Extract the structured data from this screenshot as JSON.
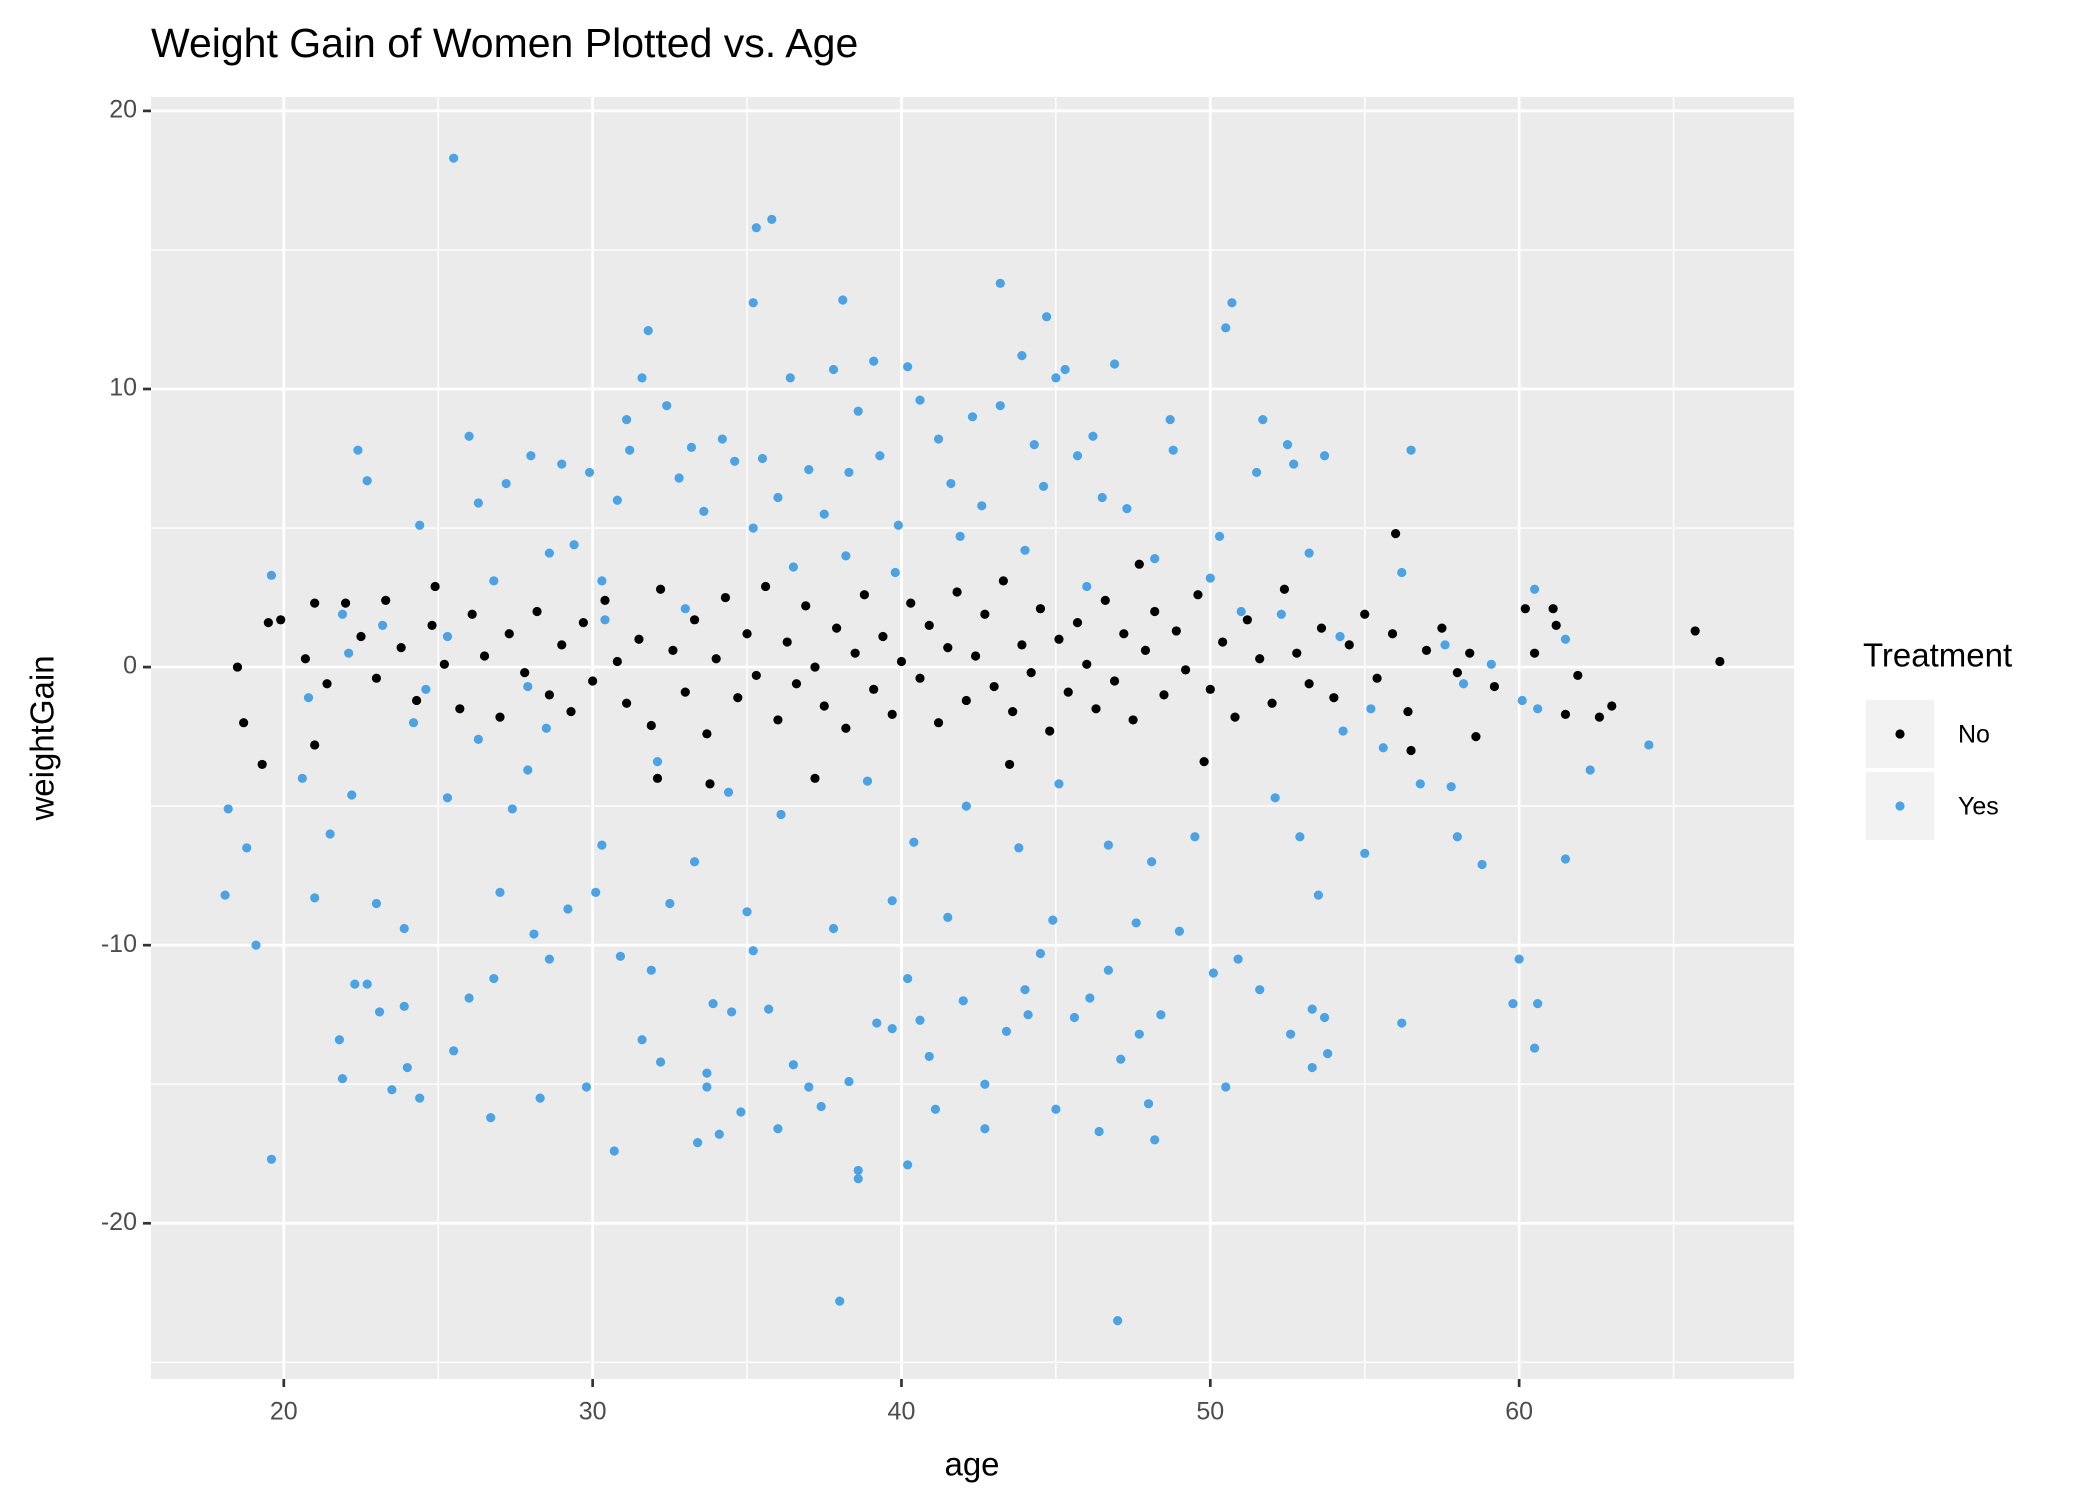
{
  "chart_data": {
    "type": "scatter",
    "title": "Weight Gain of Women Plotted vs. Age",
    "x_label": "age",
    "y_label": "weightGain",
    "legend_title": "Treatment",
    "legend_position": "right",
    "grid": true,
    "xlim": [
      15.7,
      68.9
    ],
    "xticks": [
      20,
      30,
      40,
      50,
      60
    ],
    "ylim": [
      -25.6,
      20.5
    ],
    "yticks": [
      -20,
      -10,
      0,
      10,
      20
    ],
    "series": [
      {
        "name": "No",
        "color": "#000000",
        "x": [
          56.0,
          65.7,
          66.5,
          63.0,
          62.6,
          61.9,
          61.2,
          61.1,
          60.2,
          58.6,
          56.5,
          19.3,
          18.7,
          18.5,
          19.5,
          19.9,
          21.0,
          21.0,
          22.0,
          23.3,
          24.9,
          33.8,
          37.2,
          43.5,
          47.7,
          32.1,
          49.8,
          20.7,
          21.4,
          22.5,
          23.0,
          23.8,
          24.3,
          24.8,
          25.2,
          25.7,
          26.1,
          26.5,
          27.0,
          27.3,
          27.8,
          28.2,
          28.6,
          29.0,
          29.3,
          29.7,
          30.0,
          30.4,
          30.8,
          31.1,
          31.5,
          31.9,
          32.2,
          32.6,
          33.0,
          33.3,
          33.7,
          34.0,
          34.3,
          34.7,
          35.0,
          35.3,
          35.6,
          36.0,
          36.3,
          36.6,
          36.9,
          37.2,
          37.5,
          37.9,
          38.2,
          38.5,
          38.8,
          39.1,
          39.4,
          39.7,
          40.0,
          40.3,
          40.6,
          40.9,
          41.2,
          41.5,
          41.8,
          42.1,
          42.4,
          42.7,
          43.0,
          43.3,
          43.6,
          43.9,
          44.2,
          44.5,
          44.8,
          45.1,
          45.4,
          45.7,
          46.0,
          46.3,
          46.6,
          46.9,
          47.2,
          47.5,
          47.9,
          48.2,
          48.5,
          48.9,
          49.2,
          49.6,
          50.0,
          50.4,
          50.8,
          51.2,
          51.6,
          52.0,
          52.4,
          52.8,
          53.2,
          53.6,
          54.0,
          54.5,
          55.0,
          55.4,
          55.9,
          56.4,
          57.0,
          57.5,
          58.0,
          58.4,
          59.2,
          60.5,
          61.5
        ],
        "values": [
          4.8,
          1.3,
          0.2,
          -1.4,
          -1.8,
          -0.3,
          1.5,
          2.1,
          2.1,
          -2.5,
          -3.0,
          -3.5,
          -2.0,
          0.0,
          1.6,
          1.7,
          -2.8,
          2.3,
          2.3,
          2.4,
          2.9,
          -4.2,
          -4.0,
          -3.5,
          3.7,
          -4.0,
          -3.4,
          0.3,
          -0.6,
          1.1,
          -0.4,
          0.7,
          -1.2,
          1.5,
          0.1,
          -1.5,
          1.9,
          0.4,
          -1.8,
          1.2,
          -0.2,
          2.0,
          -1.0,
          0.8,
          -1.6,
          1.6,
          -0.5,
          2.4,
          0.2,
          -1.3,
          1.0,
          -2.1,
          2.8,
          0.6,
          -0.9,
          1.7,
          -2.4,
          0.3,
          2.5,
          -1.1,
          1.2,
          -0.3,
          2.9,
          -1.9,
          0.9,
          -0.6,
          2.2,
          0.0,
          -1.4,
          1.4,
          -2.2,
          0.5,
          2.6,
          -0.8,
          1.1,
          -1.7,
          0.2,
          2.3,
          -0.4,
          1.5,
          -2.0,
          0.7,
          2.7,
          -1.2,
          0.4,
          1.9,
          -0.7,
          3.1,
          -1.6,
          0.8,
          -0.2,
          2.1,
          -2.3,
          1.0,
          -0.9,
          1.6,
          0.1,
          -1.5,
          2.4,
          -0.5,
          1.2,
          -1.9,
          0.6,
          2.0,
          -1.0,
          1.3,
          -0.1,
          2.6,
          -0.8,
          0.9,
          -1.8,
          1.7,
          0.3,
          -1.3,
          2.8,
          0.5,
          -0.6,
          1.4,
          -1.1,
          0.8,
          1.9,
          -0.4,
          1.2,
          -1.6,
          0.6,
          1.4,
          -0.2,
          0.5,
          -0.7,
          0.5,
          -1.7
        ]
      },
      {
        "name": "Yes",
        "color": "#4ba3e3",
        "x": [
          25.5,
          35.8,
          35.3,
          35.2,
          38.1,
          43.2,
          44.7,
          50.7,
          50.5,
          31.8,
          19.6,
          38.0,
          47.0,
          38.6,
          40.2,
          30.7,
          60.5,
          60.0,
          64.2,
          62.3,
          61.5,
          18.1,
          18.2,
          18.8,
          19.1,
          19.6,
          22.4,
          22.7,
          26.0,
          29.9,
          24.4,
          21.8,
          21.9,
          22.3,
          22.7,
          23.1,
          23.5,
          23.9,
          24.0,
          24.4,
          23.9,
          23.0,
          22.2,
          21.0,
          20.6,
          21.5,
          25.5,
          26.7,
          26.0,
          26.8,
          27.0,
          27.4,
          28.1,
          28.3,
          28.6,
          29.2,
          29.8,
          30.1,
          30.3,
          31.6,
          32.2,
          31.9,
          32.5,
          33.4,
          33.7,
          33.7,
          34.1,
          33.9,
          34.5,
          34.8,
          35.2,
          35.7,
          36.0,
          36.5,
          37.0,
          37.4,
          38.3,
          38.6,
          39.2,
          39.7,
          40.2,
          40.6,
          40.9,
          41.1,
          42.0,
          42.7,
          42.7,
          43.4,
          44.0,
          44.1,
          44.5,
          45.0,
          45.6,
          46.1,
          46.7,
          46.4,
          47.1,
          47.7,
          48.0,
          48.2,
          48.4,
          49.0,
          50.1,
          50.5,
          50.9,
          51.6,
          52.6,
          53.3,
          53.3,
          53.7,
          53.8,
          52.9,
          53.5,
          55.0,
          56.2,
          57.8,
          58.0,
          58.8,
          59.8,
          60.6,
          60.6,
          60.5,
          61.5,
          59.1,
          57.6,
          21.9,
          22.1,
          23.2,
          25.3,
          26.3,
          26.8,
          27.2,
          28.0,
          28.6,
          29.0,
          29.4,
          30.3,
          30.8,
          31.1,
          31.2,
          31.6,
          32.4,
          32.8,
          33.2,
          33.6,
          34.2,
          34.6,
          35.2,
          35.5,
          36.0,
          36.4,
          37.0,
          37.5,
          37.8,
          38.3,
          38.6,
          39.1,
          39.3,
          39.9,
          40.2,
          40.6,
          41.2,
          41.6,
          42.3,
          42.6,
          43.2,
          43.9,
          44.3,
          44.6,
          45.0,
          45.3,
          45.7,
          46.2,
          46.5,
          46.9,
          47.3,
          48.7,
          48.8,
          50.3,
          51.5,
          51.7,
          52.5,
          52.7,
          53.7,
          53.2,
          56.5,
          56.2,
          51.0,
          28.5,
          32.1,
          34.4,
          36.1,
          38.9,
          40.4,
          42.1,
          43.8,
          45.1,
          46.7,
          48.1,
          49.5,
          52.1,
          54.3,
          56.8,
          35.0,
          37.8,
          39.7,
          41.5,
          44.9,
          47.6,
          33.3,
          30.9,
          27.9,
          25.3,
          24.2,
          26.3,
          55.6,
          60.1,
          58.2,
          33.0,
          36.5,
          38.2,
          39.8,
          41.9,
          44.0,
          46.0,
          48.2,
          50.0,
          52.3,
          54.2,
          55.2,
          30.4,
          27.9,
          24.6,
          20.8
        ],
        "values": [
          18.3,
          16.1,
          15.8,
          13.1,
          13.2,
          13.8,
          12.6,
          13.1,
          12.2,
          12.1,
          -17.7,
          -22.8,
          -23.5,
          -18.1,
          -17.9,
          -17.4,
          -13.7,
          -10.5,
          -2.8,
          -3.7,
          -6.9,
          -8.2,
          -5.1,
          -6.5,
          -10.0,
          3.3,
          7.8,
          6.7,
          8.3,
          7.0,
          5.1,
          -13.4,
          -14.8,
          -11.4,
          -11.4,
          -12.4,
          -15.2,
          -12.2,
          -14.4,
          -15.5,
          -9.4,
          -8.5,
          -4.6,
          -8.3,
          -4.0,
          -6.0,
          -13.8,
          -16.2,
          -11.9,
          -11.2,
          -8.1,
          -5.1,
          -9.6,
          -15.5,
          -10.5,
          -8.7,
          -15.1,
          -8.1,
          -6.4,
          -13.4,
          -14.2,
          -10.9,
          -8.5,
          -17.1,
          -14.6,
          -15.1,
          -16.8,
          -12.1,
          -12.4,
          -16.0,
          -10.2,
          -12.3,
          -16.6,
          -14.3,
          -15.1,
          -15.8,
          -14.9,
          -18.4,
          -12.8,
          -13.0,
          -11.2,
          -12.7,
          -14.0,
          -15.9,
          -12.0,
          -16.6,
          -15.0,
          -13.1,
          -11.6,
          -12.5,
          -10.3,
          -15.9,
          -12.6,
          -11.9,
          -10.9,
          -16.7,
          -14.1,
          -13.2,
          -15.7,
          -17.0,
          -12.5,
          -9.5,
          -11.0,
          -15.1,
          -10.5,
          -11.6,
          -13.2,
          -12.3,
          -14.4,
          -12.6,
          -13.9,
          -6.1,
          -8.2,
          -6.7,
          -12.8,
          -4.3,
          -6.1,
          -7.1,
          -12.1,
          -12.1,
          -1.5,
          2.8,
          1.0,
          0.1,
          0.8,
          1.9,
          0.5,
          1.5,
          1.1,
          5.9,
          3.1,
          6.6,
          7.6,
          4.1,
          7.3,
          4.4,
          3.1,
          6.0,
          8.9,
          7.8,
          10.4,
          9.4,
          6.8,
          7.9,
          5.6,
          8.2,
          7.4,
          5.0,
          7.5,
          6.1,
          10.4,
          7.1,
          5.5,
          10.7,
          7.0,
          9.2,
          11.0,
          7.6,
          5.1,
          10.8,
          9.6,
          8.2,
          6.6,
          9.0,
          5.8,
          9.4,
          11.2,
          8.0,
          6.5,
          10.4,
          10.7,
          7.6,
          8.3,
          6.1,
          10.9,
          5.7,
          8.9,
          7.8,
          4.7,
          7.0,
          8.9,
          8.0,
          7.3,
          7.6,
          4.1,
          7.8,
          3.4,
          2.0,
          -2.2,
          -3.4,
          -4.5,
          -5.3,
          -4.1,
          -6.3,
          -5.0,
          -6.5,
          -4.2,
          -6.4,
          -7.0,
          -6.1,
          -4.7,
          -2.3,
          -4.2,
          -8.8,
          -9.4,
          -8.4,
          -9.0,
          -9.1,
          -9.2,
          -7.0,
          -10.4,
          -3.7,
          -4.7,
          -2.0,
          -2.6,
          -2.9,
          -1.2,
          -0.6,
          2.1,
          3.6,
          4.0,
          3.4,
          4.7,
          4.2,
          2.9,
          3.9,
          3.2,
          1.9,
          1.1,
          -1.5,
          1.7,
          -0.7,
          -0.8,
          -1.1
        ]
      }
    ]
  }
}
